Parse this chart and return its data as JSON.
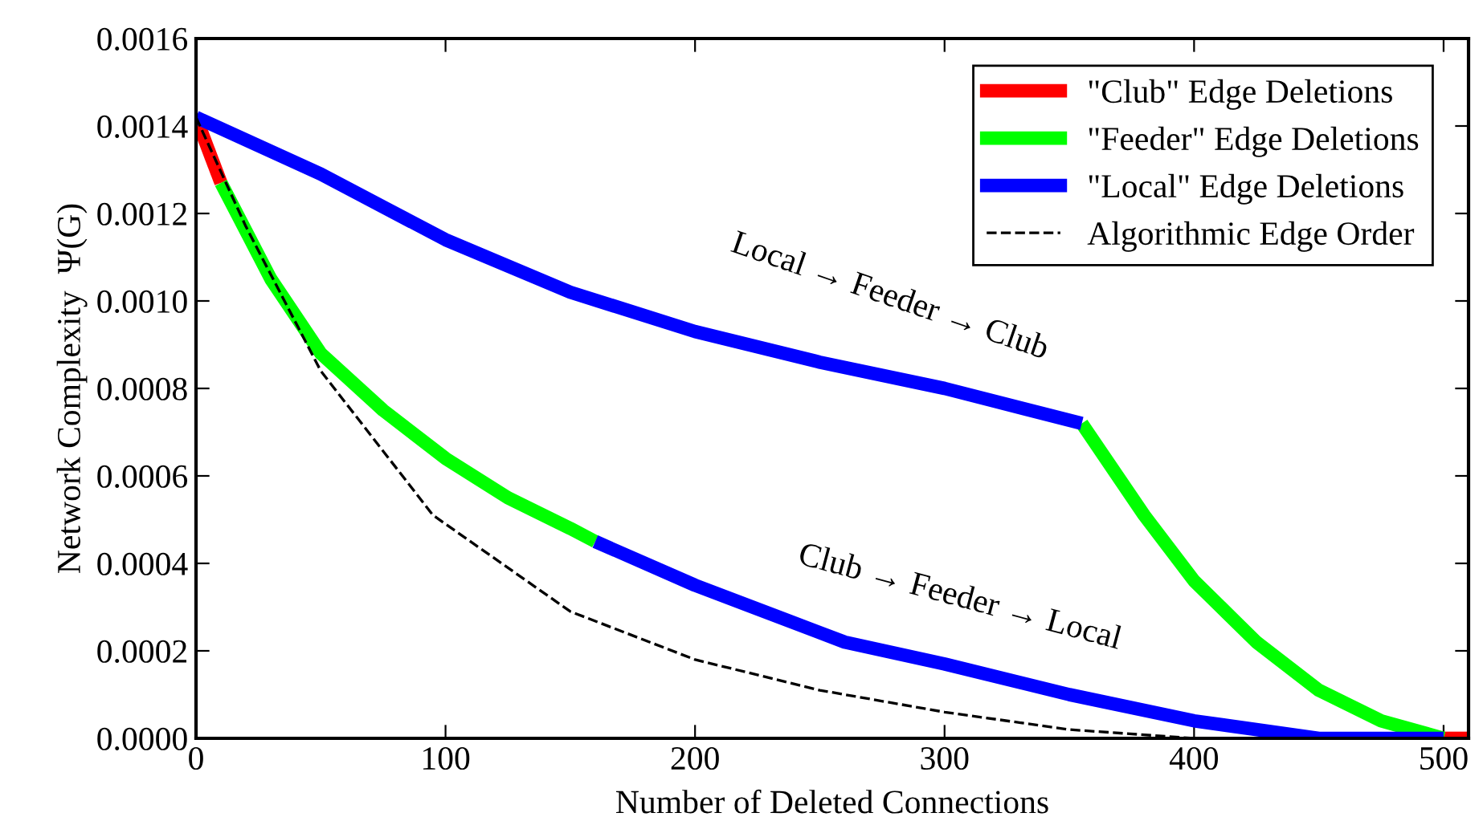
{
  "chart_data": {
    "type": "line",
    "xlabel": "Number of Deleted Connections",
    "ylabel": "Network Complexity  Ψ(G)",
    "xlim": [
      0,
      510
    ],
    "xticks": [
      0,
      100,
      200,
      300,
      400,
      500
    ],
    "ylim": [
      0,
      0.0016
    ],
    "yticks": [
      {
        "value": 0,
        "label": "0.0000"
      },
      {
        "value": 0.0002,
        "label": "0.0002"
      },
      {
        "value": 0.0004,
        "label": "0.0004"
      },
      {
        "value": 0.0006,
        "label": "0.0006"
      },
      {
        "value": 0.0008,
        "label": "0.0008"
      },
      {
        "value": 0.001,
        "label": "0.0010"
      },
      {
        "value": 0.0012,
        "label": "0.0012"
      },
      {
        "value": 0.0014,
        "label": "0.0014"
      },
      {
        "value": 0.0016,
        "label": "0.0016"
      }
    ],
    "grid": false,
    "legend": "top right",
    "marker": "none",
    "series": [
      {
        "name": "\"Club\" Edge Deletions",
        "color": "#ff0000",
        "line_style": "solid",
        "x": [
          0,
          10
        ],
        "values": [
          0.00142,
          0.00127
        ]
      },
      {
        "color": "#ff0000",
        "line_style": "solid",
        "x": [
          500,
          510
        ],
        "values": [
          0.0,
          0.0
        ]
      },
      {
        "name": "\"Feeder\" Edge Deletions",
        "color": "#00ff00",
        "line_style": "solid",
        "x": [
          10,
          30,
          50,
          75,
          100,
          125,
          150,
          160
        ],
        "values": [
          0.00127,
          0.00105,
          0.00088,
          0.00075,
          0.00064,
          0.00055,
          0.00048,
          0.00045
        ]
      },
      {
        "color": "#00ff00",
        "line_style": "solid",
        "x": [
          355,
          380,
          400,
          425,
          450,
          475,
          500
        ],
        "values": [
          0.00072,
          0.00051,
          0.00036,
          0.00022,
          0.00011,
          4e-05,
          0.0
        ]
      },
      {
        "name": "\"Local\" Edge Deletions",
        "color": "#0000ff",
        "line_style": "solid",
        "x": [
          0,
          50,
          100,
          150,
          200,
          250,
          300,
          355
        ],
        "values": [
          0.00142,
          0.00129,
          0.00114,
          0.00102,
          0.00093,
          0.00086,
          0.0008,
          0.00072
        ]
      },
      {
        "color": "#0000ff",
        "line_style": "solid",
        "x": [
          160,
          200,
          260,
          300,
          350,
          400,
          450,
          500
        ],
        "values": [
          0.00045,
          0.00035,
          0.00022,
          0.00017,
          0.0001,
          4e-05,
          0.0,
          0.0
        ]
      },
      {
        "name": "Algorithmic Edge Order",
        "color": "#000000",
        "line_style": "dashed",
        "x": [
          0,
          20,
          50,
          95,
          150,
          200,
          250,
          300,
          350,
          400,
          480
        ],
        "values": [
          0.00142,
          0.00117,
          0.00084,
          0.00051,
          0.00029,
          0.00018,
          0.00011,
          6e-05,
          2e-05,
          0.0,
          0.0
        ]
      }
    ],
    "annotations": [
      "Local → Feeder → Club",
      "Club → Feeder → Local"
    ]
  }
}
